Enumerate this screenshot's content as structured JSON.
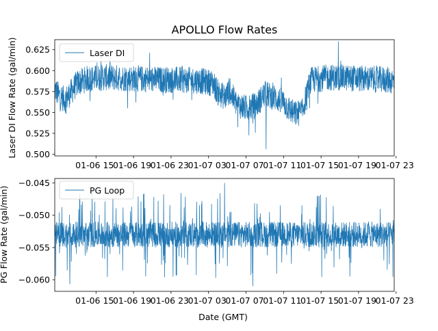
{
  "chart_data": [
    {
      "type": "line",
      "title": "APOLLO Flow Rates",
      "xlabel": "",
      "ylabel": "Laser DI Flow Rate (gal/min)",
      "x_tick_labels": [
        "01-06 15",
        "01-06 19",
        "01-06 23",
        "01-07 03",
        "01-07 07",
        "01-07 11",
        "01-07 15",
        "01-07 19",
        "01-07 23"
      ],
      "x_ticks_hours": [
        15,
        19,
        23,
        27,
        31,
        35,
        39,
        43,
        47
      ],
      "xlim_hours": [
        10.6,
        46.8
      ],
      "ylim": [
        0.498,
        0.637
      ],
      "y_ticks": [
        0.5,
        0.525,
        0.55,
        0.575,
        0.6,
        0.625
      ],
      "y_tick_labels": [
        "0.500",
        "0.525",
        "0.550",
        "0.575",
        "0.600",
        "0.625"
      ],
      "legend": {
        "label": "Laser DI",
        "position": "upper left"
      },
      "series": [
        {
          "name": "Laser DI",
          "color": "#1f77b4",
          "profile_hours": [
            10.6,
            11.0,
            11.7,
            12.2,
            13.0,
            14.0,
            16.0,
            18.0,
            20.0,
            22.0,
            24.0,
            26.0,
            27.5,
            28.0,
            28.8,
            29.2,
            30.0,
            31.0,
            32.0,
            32.6,
            33.0,
            34.0,
            35.0,
            35.5,
            36.2,
            37.0,
            37.6,
            38.0,
            40.0,
            42.0,
            44.0,
            46.0,
            46.8
          ],
          "profile_mean": [
            0.578,
            0.571,
            0.565,
            0.572,
            0.585,
            0.59,
            0.592,
            0.591,
            0.59,
            0.589,
            0.589,
            0.588,
            0.585,
            0.574,
            0.568,
            0.576,
            0.56,
            0.555,
            0.558,
            0.566,
            0.572,
            0.568,
            0.562,
            0.555,
            0.548,
            0.551,
            0.578,
            0.589,
            0.592,
            0.591,
            0.59,
            0.589,
            0.587
          ],
          "noise_halfwidth": 0.016,
          "min": 0.506,
          "max": 0.635
        }
      ]
    },
    {
      "type": "line",
      "title": "",
      "xlabel": "Date (GMT)",
      "ylabel": "PG Flow Rate (gal/min)",
      "x_tick_labels": [
        "01-06 15",
        "01-06 19",
        "01-06 23",
        "01-07 03",
        "01-07 07",
        "01-07 11",
        "01-07 15",
        "01-07 19",
        "01-07 23"
      ],
      "x_ticks_hours": [
        15,
        19,
        23,
        27,
        31,
        35,
        39,
        43,
        47
      ],
      "xlim_hours": [
        10.6,
        46.8
      ],
      "ylim": [
        -0.0618,
        -0.0443
      ],
      "y_ticks": [
        -0.06,
        -0.055,
        -0.05,
        -0.045
      ],
      "y_tick_labels": [
        "−0.060",
        "−0.055",
        "−0.050",
        "−0.045"
      ],
      "legend": {
        "label": "PG Loop",
        "position": "upper left"
      },
      "series": [
        {
          "name": "PG Loop",
          "color": "#1f77b4",
          "mean": -0.053,
          "band_low": -0.055,
          "band_high": -0.051,
          "min": -0.061,
          "max": -0.045
        }
      ]
    }
  ]
}
